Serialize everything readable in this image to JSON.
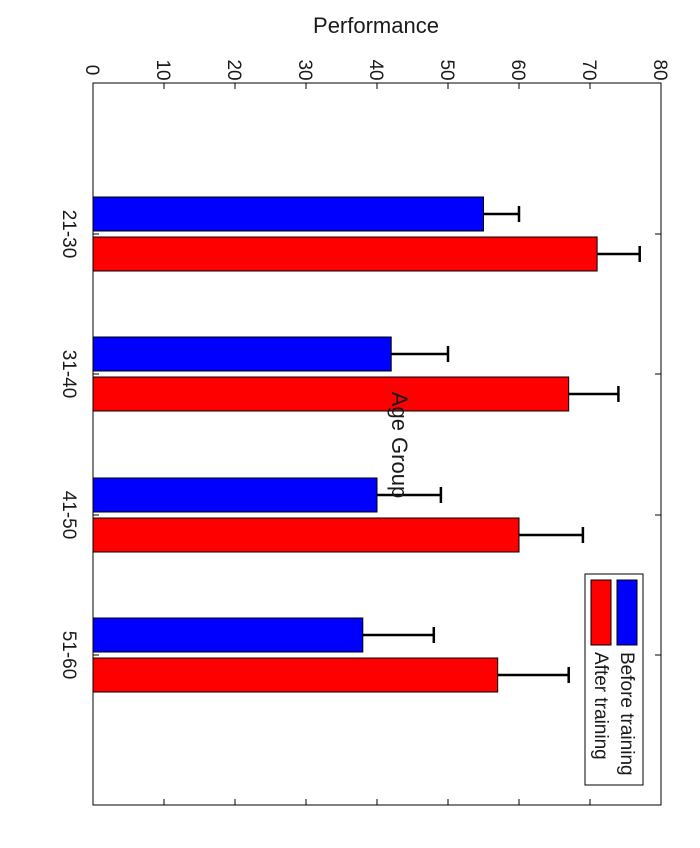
{
  "chart_data": {
    "type": "bar",
    "orientation": "horizontal",
    "page_rotation": "rotated 90 degrees clockwise",
    "xlabel": "Age Group",
    "ylabel": "Performance",
    "ylim": [
      0,
      80
    ],
    "y_ticks": [
      0,
      10,
      20,
      30,
      40,
      50,
      60,
      70,
      80
    ],
    "categories": [
      "21-30",
      "31-40",
      "41-50",
      "51-60"
    ],
    "series": [
      {
        "name": "Before training",
        "color": "#0000ff",
        "values": [
          55,
          42,
          40,
          38
        ],
        "errors": [
          5,
          8,
          9,
          10
        ]
      },
      {
        "name": "After training",
        "color": "#ff0000",
        "values": [
          71,
          67,
          60,
          57
        ],
        "errors": [
          6,
          7,
          9,
          10
        ]
      }
    ],
    "error_bars": true,
    "legend_position": "top-right",
    "grid": false
  }
}
